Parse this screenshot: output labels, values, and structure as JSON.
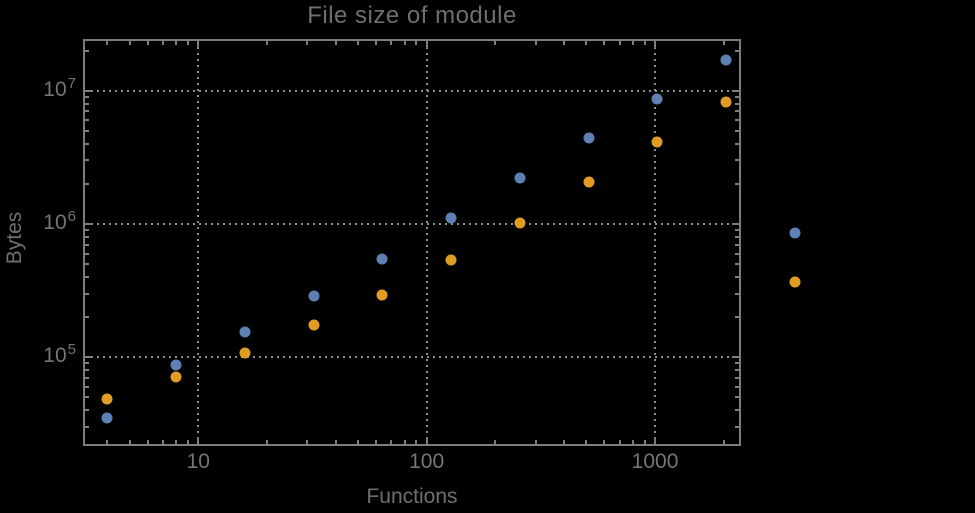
{
  "chart_data": {
    "type": "scatter",
    "title": "File size of module",
    "xlabel": "Functions",
    "ylabel": "Bytes",
    "x_scale": "log",
    "y_scale": "log",
    "grid": "dotted gridlines at powers of 10, frame on all four sides with ticks",
    "legend_position": "none",
    "x": [
      4,
      8,
      16,
      32,
      64,
      128,
      256,
      512,
      1024,
      2048,
      4096
    ],
    "series": [
      {
        "name": "blue",
        "color": "#5e81b5",
        "values": [
          35000,
          87000,
          155000,
          290000,
          550000,
          1100000,
          2200000,
          4400000,
          8600000,
          17000000,
          850000
        ]
      },
      {
        "name": "orange",
        "color": "#e19c24",
        "values": [
          49000,
          71000,
          108000,
          175000,
          295000,
          540000,
          1020000,
          2050000,
          4100000,
          8200000,
          370000
        ]
      }
    ],
    "xlim": [
      3.16,
      2355
    ],
    "ylim": [
      22000,
      24000000
    ],
    "x_tick_values": [
      10,
      100,
      1000
    ],
    "x_tick_labels": [
      "10",
      "100",
      "1000"
    ],
    "y_tick_exponents": [
      5,
      6,
      7
    ],
    "y_tick_base": "10"
  },
  "styles": {
    "background": "#000000",
    "text_color": "#6f6f6f",
    "tick_label_color": "#757575",
    "frame_color": "#7d7d7d",
    "grid_color": "#8d8d8d"
  }
}
